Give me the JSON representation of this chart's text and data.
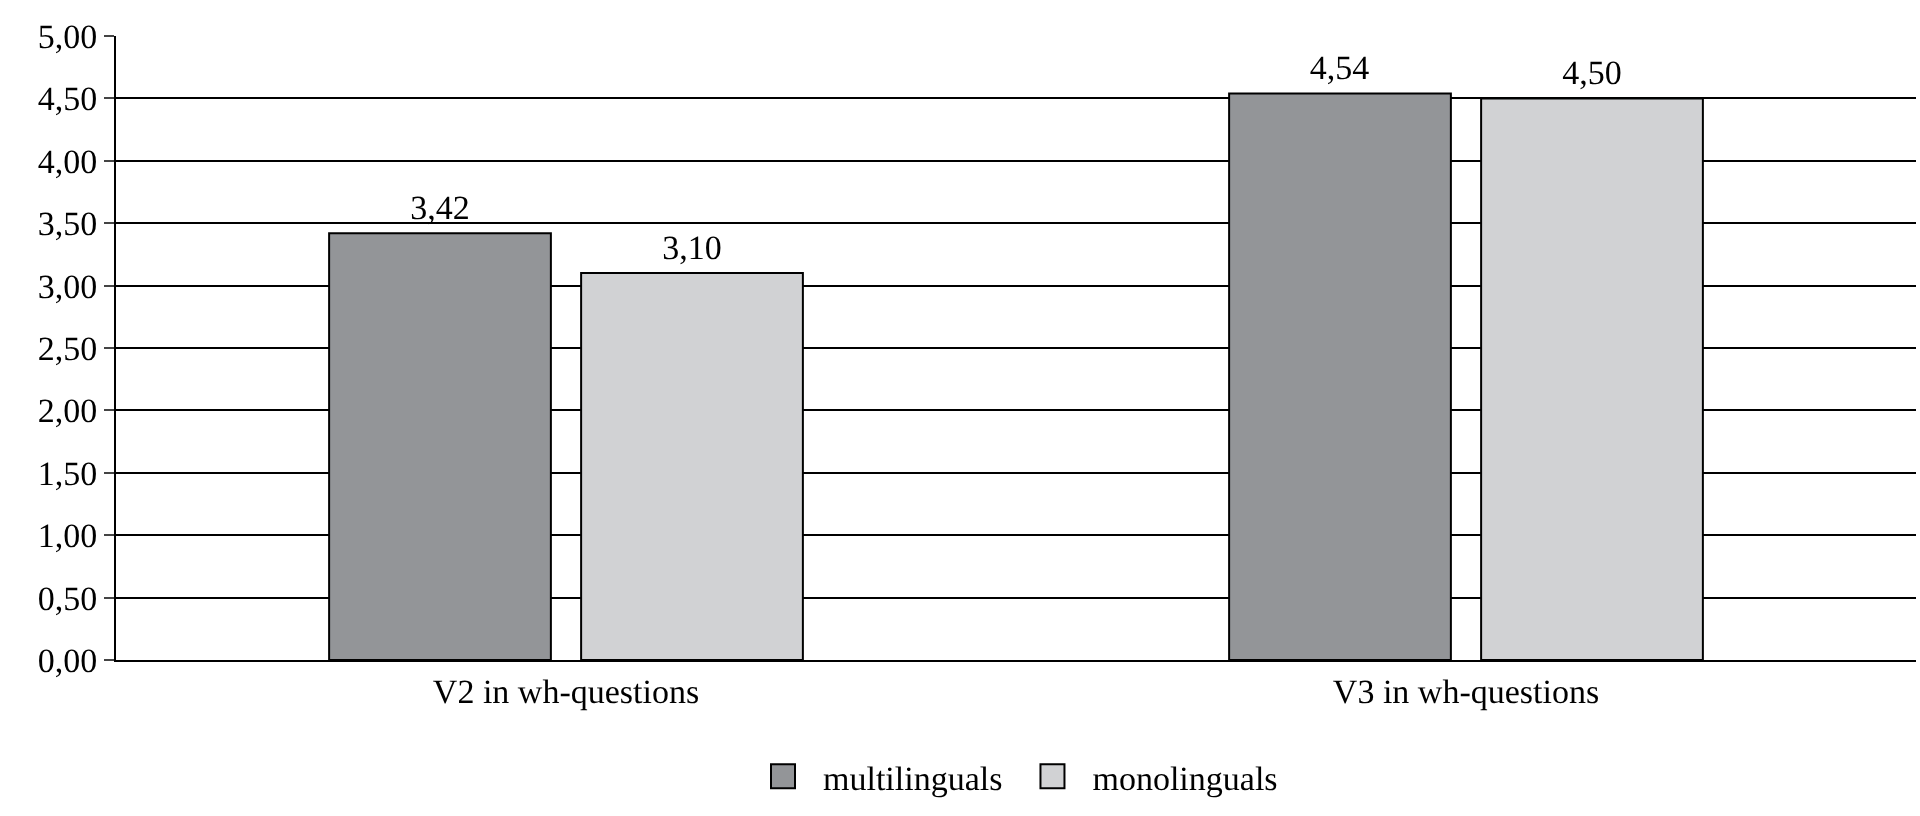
{
  "chart_data": {
    "type": "bar",
    "categories": [
      "V2 in wh-questions",
      "V3 in wh-questions"
    ],
    "series": [
      {
        "name": "multilinguals",
        "color": "#939598",
        "values": [
          3.42,
          4.54
        ],
        "value_labels": [
          "3,42",
          "4,54"
        ]
      },
      {
        "name": "monolinguals",
        "color": "#d1d2d4",
        "values": [
          3.1,
          4.5
        ],
        "value_labels": [
          "3,10",
          "4,50"
        ]
      }
    ],
    "ylim": [
      0,
      5
    ],
    "yticks": [
      {
        "value": 0,
        "label": "0,00"
      },
      {
        "value": 0.5,
        "label": "0,50"
      },
      {
        "value": 1,
        "label": "1,00"
      },
      {
        "value": 1.5,
        "label": "1,50"
      },
      {
        "value": 2,
        "label": "2,00"
      },
      {
        "value": 2.5,
        "label": "2,50"
      },
      {
        "value": 3,
        "label": "3,00"
      },
      {
        "value": 3.5,
        "label": "3,50"
      },
      {
        "value": 4,
        "label": "4,00"
      },
      {
        "value": 4.5,
        "label": "4,50"
      },
      {
        "value": 5,
        "label": "5,00"
      }
    ],
    "grid": "y",
    "legend": "bottom"
  }
}
